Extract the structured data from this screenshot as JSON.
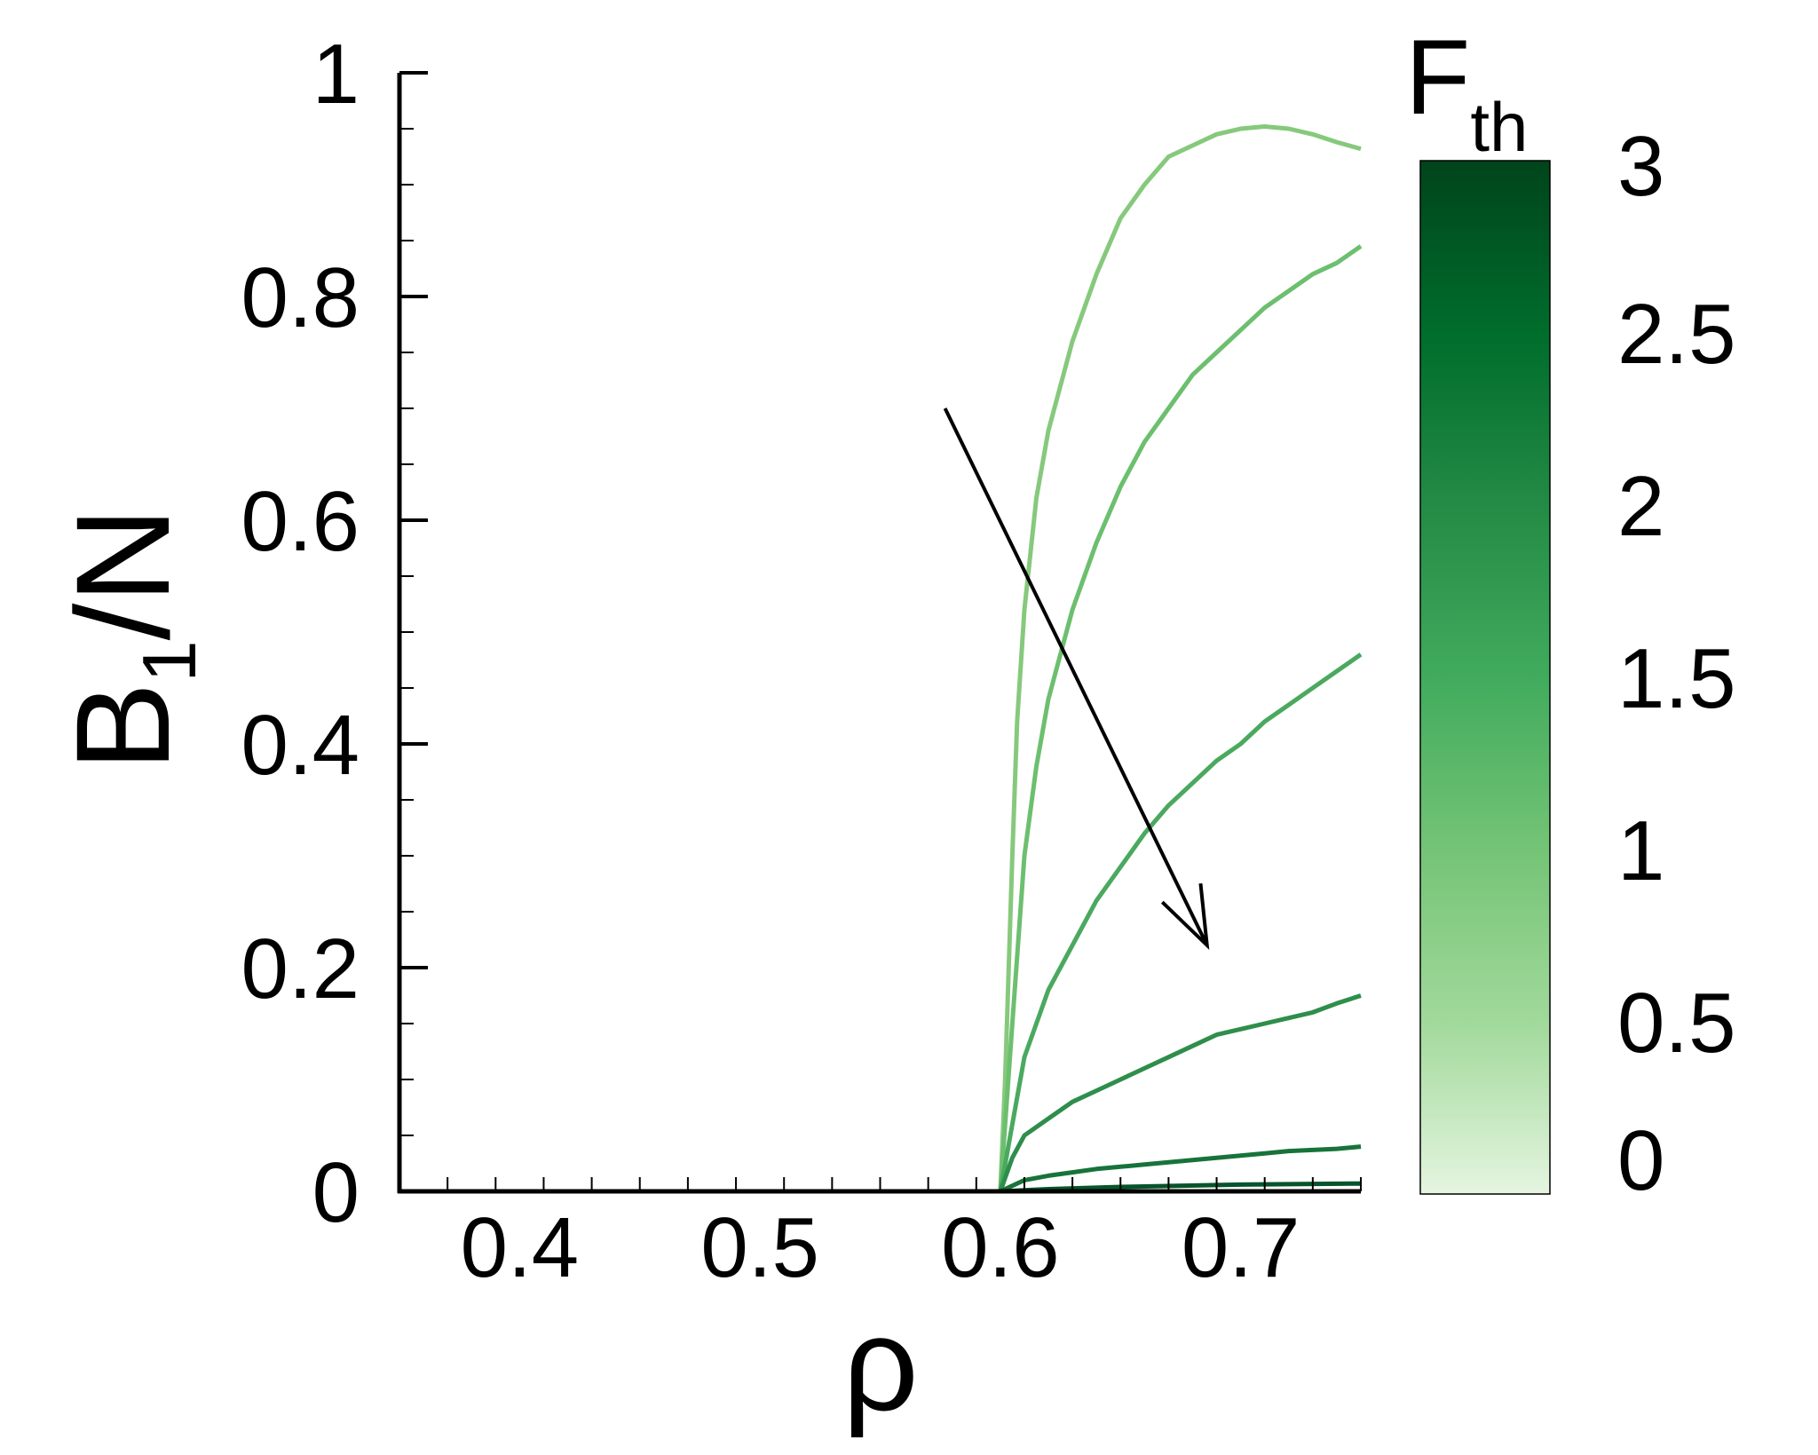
{
  "chart_data": {
    "type": "line",
    "xlabel": "ρ",
    "ylabel": {
      "main": "B",
      "sub": "1",
      "rest": "/N"
    },
    "xlim": [
      0.35,
      0.75
    ],
    "ylim": [
      0,
      1
    ],
    "x_ticks": [
      "0.4",
      "0.5",
      "0.6",
      "0.7"
    ],
    "y_ticks": [
      "0",
      "0.2",
      "0.4",
      "0.6",
      "0.8",
      "1"
    ],
    "grid": false,
    "colorbar": {
      "label": {
        "main": "F",
        "sub": "th"
      },
      "range": [
        0,
        3
      ],
      "ticks": [
        "0",
        "0.5",
        "1",
        "1.5",
        "2",
        "2.5",
        "3"
      ],
      "colors": [
        "#e5f5e0",
        "#a1d99b",
        "#74c476",
        "#41ab5d",
        "#238b45",
        "#006d2c",
        "#00441b"
      ]
    },
    "annotation": {
      "type": "arrow",
      "meaning": "increasing F_th",
      "from": [
        0.577,
        0.7
      ],
      "to": [
        0.686,
        0.22
      ]
    },
    "series": [
      {
        "fth": 0.4,
        "color": "#86c97c",
        "x": [
          0.35,
          0.6,
          0.602,
          0.605,
          0.607,
          0.61,
          0.615,
          0.62,
          0.63,
          0.64,
          0.65,
          0.66,
          0.67,
          0.68,
          0.69,
          0.7,
          0.71,
          0.72,
          0.73,
          0.74,
          0.75
        ],
        "y": [
          0,
          0,
          0.1,
          0.3,
          0.42,
          0.52,
          0.62,
          0.68,
          0.76,
          0.82,
          0.87,
          0.9,
          0.925,
          0.935,
          0.945,
          0.95,
          0.952,
          0.95,
          0.945,
          0.938,
          0.932
        ]
      },
      {
        "fth": 0.8,
        "color": "#6cbf6e",
        "x": [
          0.35,
          0.6,
          0.605,
          0.61,
          0.615,
          0.62,
          0.63,
          0.64,
          0.65,
          0.66,
          0.67,
          0.68,
          0.69,
          0.7,
          0.71,
          0.72,
          0.73,
          0.74,
          0.75
        ],
        "y": [
          0,
          0,
          0.15,
          0.3,
          0.38,
          0.44,
          0.52,
          0.58,
          0.63,
          0.67,
          0.7,
          0.73,
          0.75,
          0.77,
          0.79,
          0.805,
          0.82,
          0.83,
          0.845
        ]
      },
      {
        "fth": 1.2,
        "color": "#4aa95f",
        "x": [
          0.35,
          0.6,
          0.605,
          0.61,
          0.62,
          0.63,
          0.64,
          0.65,
          0.66,
          0.67,
          0.68,
          0.69,
          0.7,
          0.71,
          0.72,
          0.73,
          0.74,
          0.75
        ],
        "y": [
          0,
          0,
          0.06,
          0.12,
          0.18,
          0.22,
          0.26,
          0.29,
          0.32,
          0.345,
          0.365,
          0.385,
          0.4,
          0.42,
          0.435,
          0.45,
          0.465,
          0.48
        ]
      },
      {
        "fth": 1.7,
        "color": "#2e8e4b",
        "x": [
          0.35,
          0.6,
          0.605,
          0.61,
          0.62,
          0.63,
          0.64,
          0.65,
          0.66,
          0.67,
          0.68,
          0.69,
          0.7,
          0.71,
          0.72,
          0.73,
          0.74,
          0.75
        ],
        "y": [
          0,
          0,
          0.03,
          0.05,
          0.065,
          0.08,
          0.09,
          0.1,
          0.11,
          0.12,
          0.13,
          0.14,
          0.145,
          0.15,
          0.155,
          0.16,
          0.168,
          0.175
        ]
      },
      {
        "fth": 2.3,
        "color": "#17733a",
        "x": [
          0.35,
          0.6,
          0.61,
          0.62,
          0.63,
          0.64,
          0.65,
          0.66,
          0.67,
          0.68,
          0.69,
          0.7,
          0.71,
          0.72,
          0.73,
          0.74,
          0.75
        ],
        "y": [
          0,
          0,
          0.01,
          0.014,
          0.017,
          0.02,
          0.022,
          0.024,
          0.026,
          0.028,
          0.03,
          0.032,
          0.034,
          0.036,
          0.037,
          0.038,
          0.04
        ]
      },
      {
        "fth": 2.9,
        "color": "#06552a",
        "x": [
          0.35,
          0.6,
          0.62,
          0.65,
          0.7,
          0.75
        ],
        "y": [
          0,
          0,
          0.002,
          0.004,
          0.006,
          0.007
        ]
      }
    ]
  }
}
